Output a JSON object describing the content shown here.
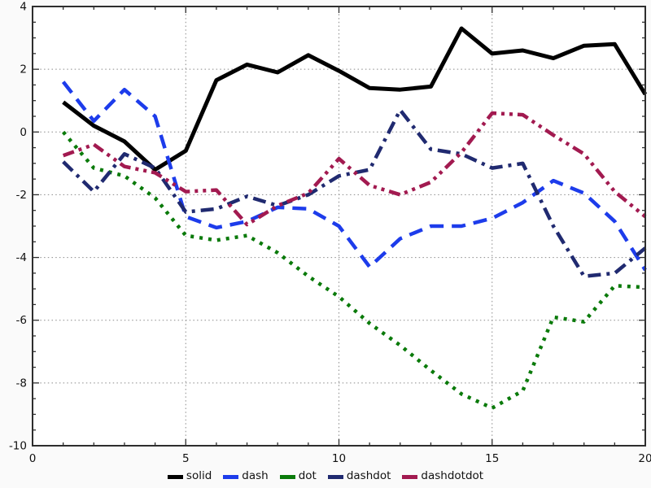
{
  "chart_data": {
    "type": "line",
    "title": "",
    "xlabel": "",
    "ylabel": "",
    "xlim": [
      0,
      20
    ],
    "ylim": [
      -10,
      4
    ],
    "grid": "dotted-at-major-ticks",
    "legend_position": "bottom-center",
    "x_ticks_major": [
      0,
      5,
      10,
      15,
      20
    ],
    "x_tick_labels": [
      "0",
      "5",
      "10",
      "15",
      "20"
    ],
    "x_tick_minor_step": 1,
    "y_ticks_major": [
      4,
      2,
      0,
      -2,
      -4,
      -6,
      -8,
      -10
    ],
    "y_tick_labels": [
      "4",
      "2",
      "0",
      "-2",
      "-4",
      "-6",
      "-8",
      "-10"
    ],
    "y_tick_minor_step": 0.5,
    "x": [
      1,
      2,
      3,
      4,
      5,
      6,
      7,
      8,
      9,
      10,
      11,
      12,
      13,
      14,
      15,
      16,
      17,
      18,
      19,
      20
    ],
    "series": [
      {
        "name": "solid",
        "linestyle": "solid",
        "color": "#000000",
        "values": [
          0.95,
          0.2,
          -0.3,
          -1.2,
          -0.6,
          1.65,
          2.15,
          1.9,
          2.45,
          1.95,
          1.4,
          1.35,
          1.45,
          3.3,
          2.5,
          2.6,
          2.35,
          2.75,
          2.8,
          1.2
        ]
      },
      {
        "name": "dash",
        "linestyle": "dash",
        "color": "#1d3ceb",
        "values": [
          1.6,
          0.35,
          1.35,
          0.5,
          -2.7,
          -3.05,
          -2.85,
          -2.4,
          -2.45,
          -3.0,
          -4.3,
          -3.4,
          -3.0,
          -3.0,
          -2.75,
          -2.25,
          -1.55,
          -1.95,
          -2.85,
          -4.4
        ]
      },
      {
        "name": "dot",
        "linestyle": "dot",
        "color": "#0a7a0a",
        "values": [
          0.0,
          -1.15,
          -1.4,
          -2.1,
          -3.3,
          -3.45,
          -3.3,
          -3.85,
          -4.6,
          -5.25,
          -6.1,
          -6.8,
          -7.6,
          -8.35,
          -8.8,
          -8.25,
          -5.9,
          -6.05,
          -4.9,
          -4.95
        ]
      },
      {
        "name": "dashdot",
        "linestyle": "dashdot",
        "color": "#202a70",
        "values": [
          -0.95,
          -1.9,
          -0.7,
          -1.15,
          -2.55,
          -2.45,
          -2.05,
          -2.35,
          -2.0,
          -1.4,
          -1.2,
          0.7,
          -0.55,
          -0.7,
          -1.15,
          -1.0,
          -3.0,
          -4.6,
          -4.5,
          -3.7
        ]
      },
      {
        "name": "dashdotdot",
        "linestyle": "dashdotdot",
        "color": "#a21a50",
        "values": [
          -0.75,
          -0.4,
          -1.1,
          -1.3,
          -1.9,
          -1.85,
          -2.95,
          -2.35,
          -1.95,
          -0.85,
          -1.7,
          -2.0,
          -1.6,
          -0.65,
          0.6,
          0.55,
          -0.1,
          -0.7,
          -1.9,
          -2.7
        ]
      }
    ]
  }
}
